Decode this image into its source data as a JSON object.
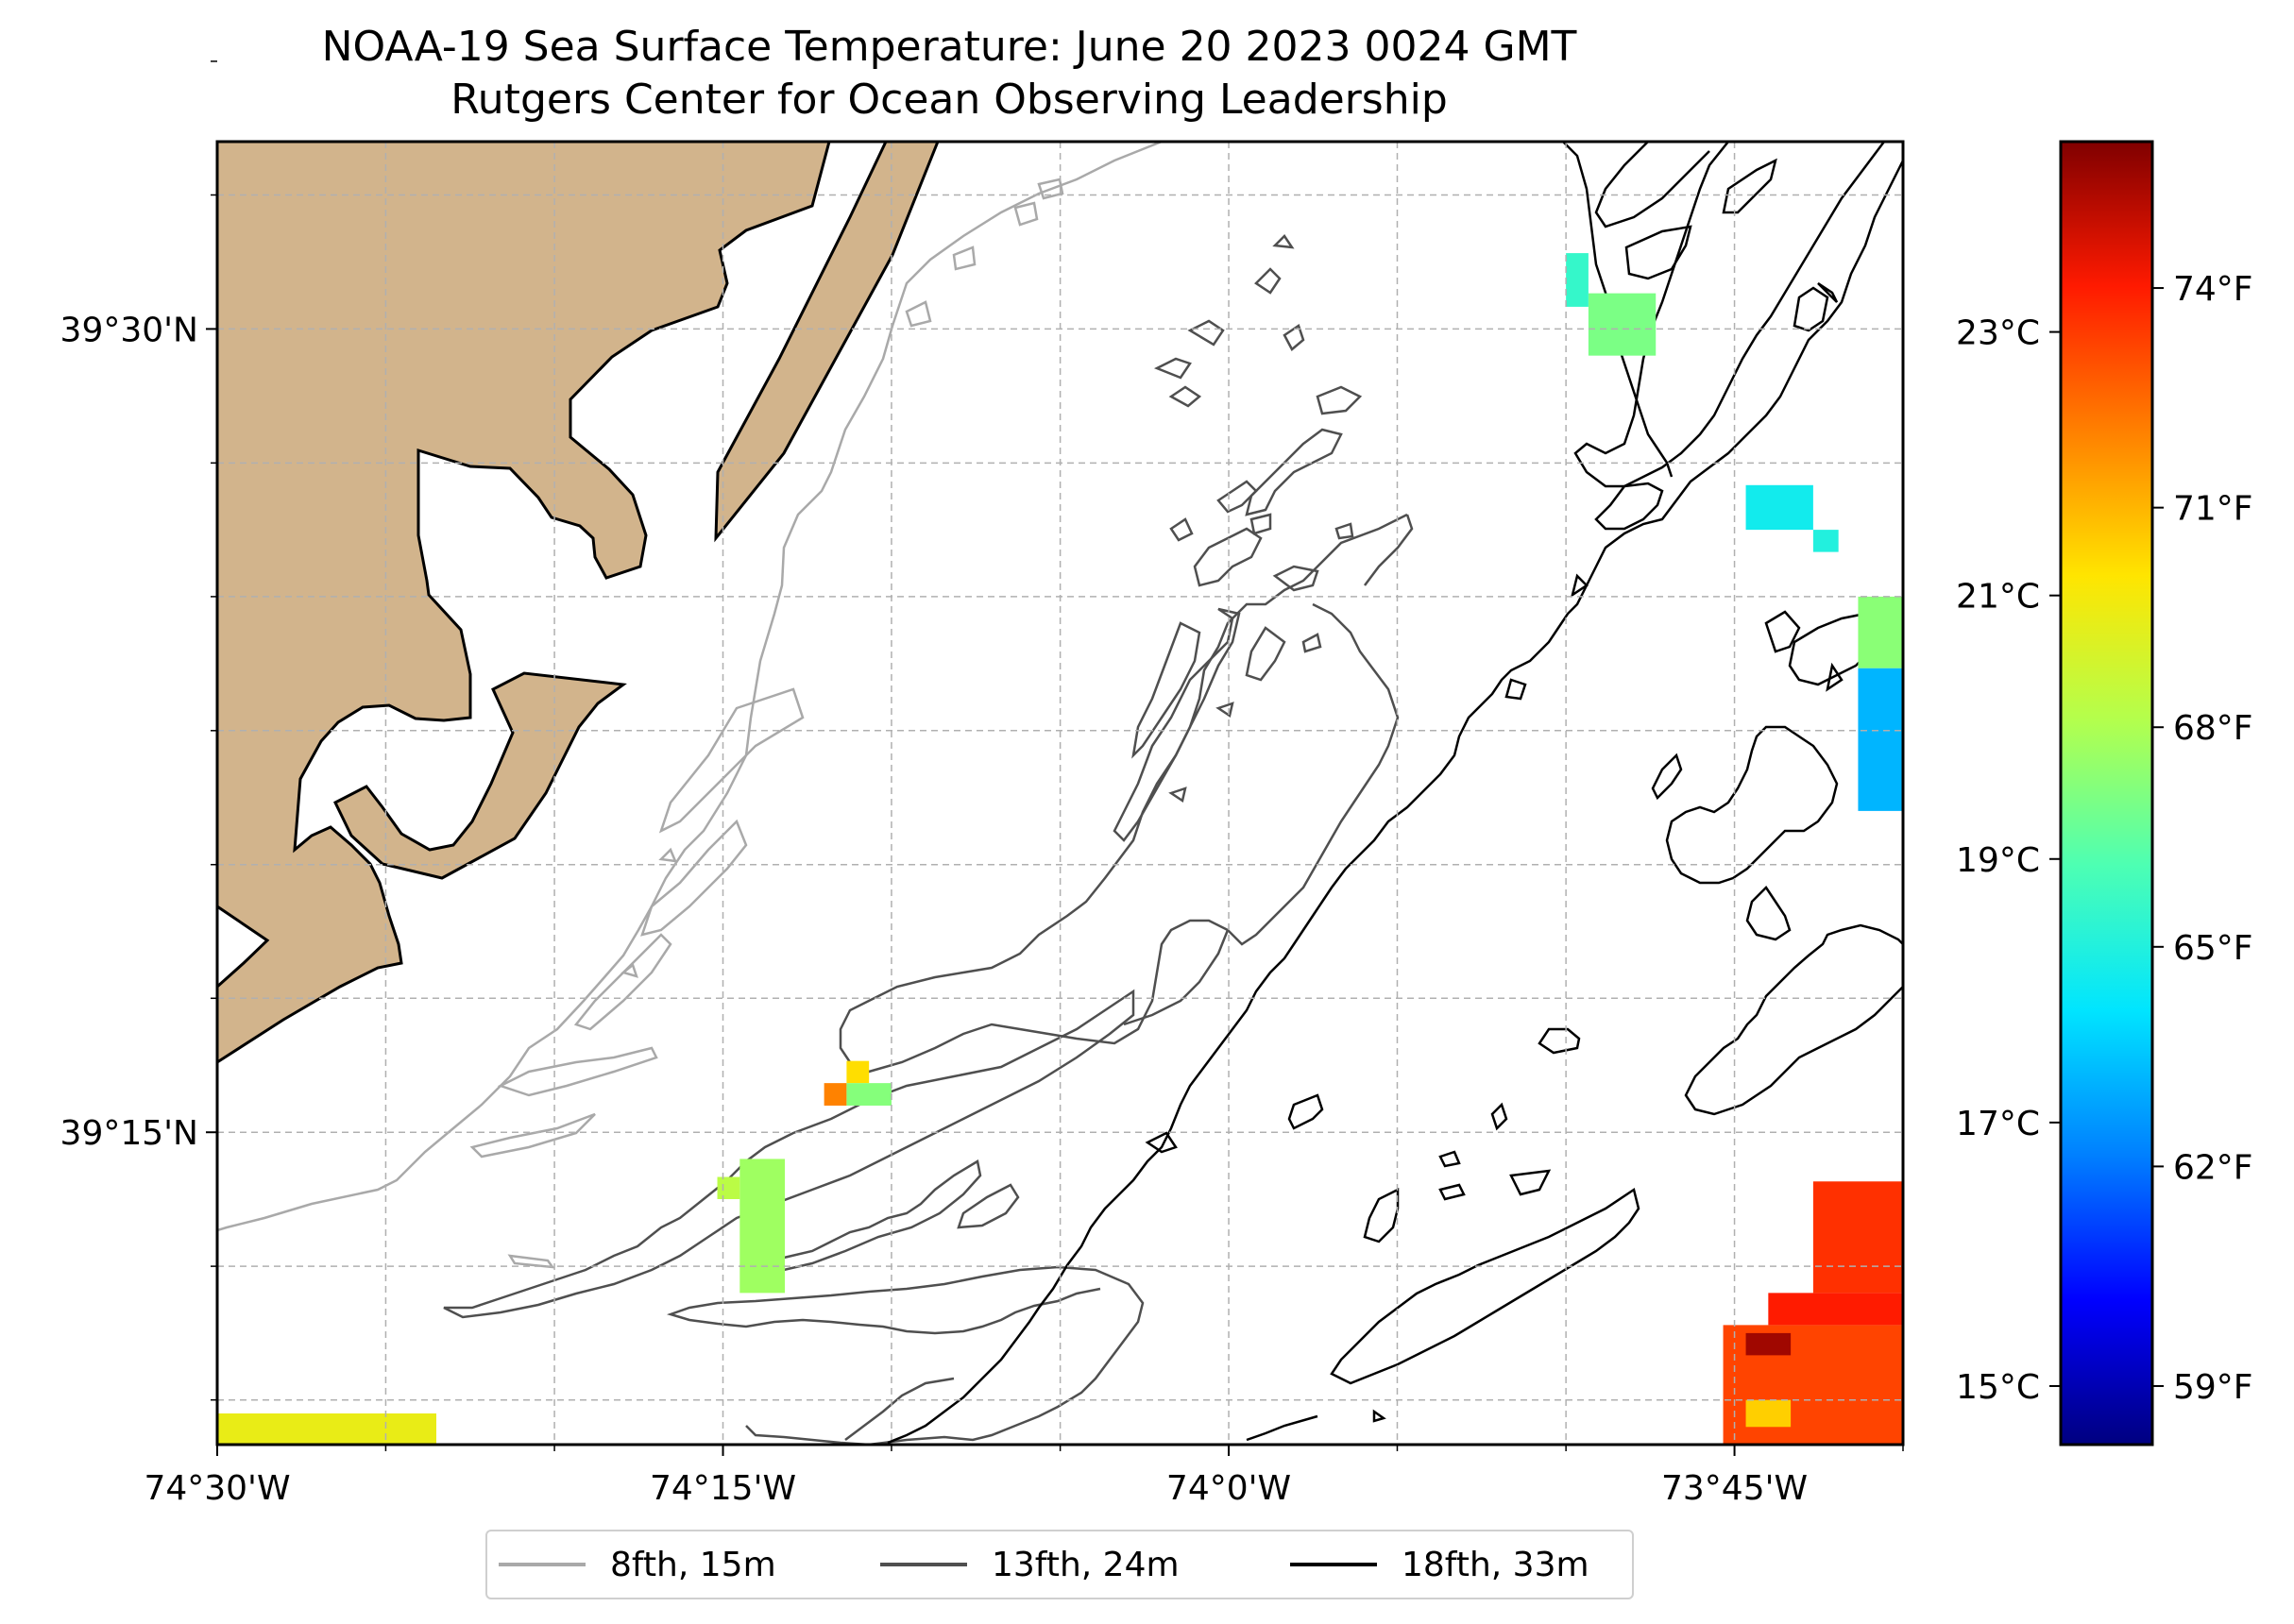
{
  "title": {
    "line1": "NOAA-19 Sea Surface Temperature: June 20 2023 0024 GMT",
    "line2": "Rutgers Center for Ocean Observing Leadership"
  },
  "map": {
    "extent": {
      "lon_min": -74.5,
      "lon_max": -73.6667,
      "lat_min": 39.1528,
      "lat_max": 39.5583
    },
    "colors": {
      "land": "#d2b48c",
      "ocean": "#ffffff",
      "coast": "#000000",
      "grid": "#b0b0b0",
      "contour_8": "#a9a9a9",
      "contour_13": "#4f4f4f",
      "contour_18": "#000000"
    },
    "x_ticks": [
      {
        "lon": -74.5,
        "label": "74°30'W"
      },
      {
        "lon": -74.25,
        "label": "74°15'W"
      },
      {
        "lon": -74.0,
        "label": "74°0'W"
      },
      {
        "lon": -73.75,
        "label": "73°45'W"
      }
    ],
    "x_minor_lons": [
      -74.4167,
      -74.3333,
      -74.1667,
      -74.0833,
      -73.9167,
      -73.8333,
      -73.6667
    ],
    "y_ticks": [
      {
        "lat": 39.5,
        "label": "39°30'N"
      },
      {
        "lat": 39.25,
        "label": "39°15'N"
      }
    ],
    "y_minor_lats": [
      39.5833,
      39.5417,
      39.4583,
      39.4167,
      39.375,
      39.3333,
      39.2917,
      39.2083,
      39.1667
    ]
  },
  "legend": {
    "items": [
      {
        "label": "8fth, 15m",
        "color": "#a9a9a9"
      },
      {
        "label": "13fth, 24m",
        "color": "#4f4f4f"
      },
      {
        "label": "18fth, 33m",
        "color": "#000000"
      }
    ]
  },
  "colorbar": {
    "vmin_f": 58.2,
    "vmax_f": 76.0,
    "stops": [
      "#000080",
      "#0000ff",
      "#0080ff",
      "#00e5ff",
      "#4dffb3",
      "#b3ff4d",
      "#ffe500",
      "#ff8000",
      "#ff1a00",
      "#800000"
    ],
    "celsius_ticks": [
      {
        "value_c": 23,
        "label": "23°C"
      },
      {
        "value_c": 21,
        "label": "21°C"
      },
      {
        "value_c": 19,
        "label": "19°C"
      },
      {
        "value_c": 17,
        "label": "17°C"
      },
      {
        "value_c": 15,
        "label": "15°C"
      }
    ],
    "fahrenheit_ticks": [
      {
        "value_f": 74,
        "label": "74°F"
      },
      {
        "value_f": 71,
        "label": "71°F"
      },
      {
        "value_f": 68,
        "label": "68°F"
      },
      {
        "value_f": 65,
        "label": "65°F"
      },
      {
        "value_f": 62,
        "label": "62°F"
      },
      {
        "value_f": 59,
        "label": "59°F"
      }
    ]
  },
  "sst_patches": [
    {
      "name": "sst-cell-southwest-strip",
      "lon": [
        -74.5,
        -74.3917
      ],
      "lat": [
        39.1528,
        39.1625
      ],
      "temp_f": 69.5
    },
    {
      "name": "sst-cell-west-cluster",
      "lon": [
        -74.2417,
        -74.2194
      ],
      "lat": [
        39.2,
        39.2417
      ],
      "temp_f": 67.7
    },
    {
      "name": "sst-cell-west-cluster-edge",
      "lon": [
        -74.2528,
        -74.2417
      ],
      "lat": [
        39.2292,
        39.2361
      ],
      "temp_f": 68.3
    },
    {
      "name": "sst-cell-mid-orange",
      "lon": [
        -74.2,
        -74.1889
      ],
      "lat": [
        39.2583,
        39.2653
      ],
      "temp_f": 72.0
    },
    {
      "name": "sst-cell-mid-yellow",
      "lon": [
        -74.1889,
        -74.1778
      ],
      "lat": [
        39.2653,
        39.2722
      ],
      "temp_f": 70.2
    },
    {
      "name": "sst-cell-mid-green",
      "lon": [
        -74.1889,
        -74.1667
      ],
      "lat": [
        39.2583,
        39.2653
      ],
      "temp_f": 67.2
    },
    {
      "name": "sst-cell-northeast-green",
      "lon": [
        -73.8222,
        -73.7889
      ],
      "lat": [
        39.4917,
        39.5111
      ],
      "temp_f": 67.0
    },
    {
      "name": "sst-cell-northeast-cyan",
      "lon": [
        -73.8333,
        -73.8222
      ],
      "lat": [
        39.5069,
        39.5236
      ],
      "temp_f": 65.5
    },
    {
      "name": "sst-cell-east-cyan",
      "lon": [
        -73.7444,
        -73.7111
      ],
      "lat": [
        39.4375,
        39.4514
      ],
      "temp_f": 64.6
    },
    {
      "name": "sst-cell-east-cyan-small",
      "lon": [
        -73.7111,
        -73.6986
      ],
      "lat": [
        39.4306,
        39.4375
      ],
      "temp_f": 65.0
    },
    {
      "name": "sst-cell-east-green",
      "lon": [
        -73.6889,
        -73.6667
      ],
      "lat": [
        39.3944,
        39.4167
      ],
      "temp_f": 67.3
    },
    {
      "name": "sst-cell-east-blue",
      "lon": [
        -73.6889,
        -73.6667
      ],
      "lat": [
        39.35,
        39.3944
      ],
      "temp_f": 63.2
    },
    {
      "name": "sst-cell-southeast-warm-a",
      "lon": [
        -73.7556,
        -73.6667
      ],
      "lat": [
        39.1528,
        39.19
      ],
      "temp_f": 73.2
    },
    {
      "name": "sst-cell-southeast-warm-b",
      "lon": [
        -73.7333,
        -73.6667
      ],
      "lat": [
        39.19,
        39.2
      ],
      "temp_f": 74.0
    },
    {
      "name": "sst-cell-southeast-warm-c",
      "lon": [
        -73.7111,
        -73.6667
      ],
      "lat": [
        39.2,
        39.2347
      ],
      "temp_f": 73.6
    },
    {
      "name": "sst-cell-southeast-hot",
      "lon": [
        -73.7444,
        -73.7222
      ],
      "lat": [
        39.1806,
        39.1875
      ],
      "temp_f": 75.5
    },
    {
      "name": "sst-cell-southeast-yellow",
      "lon": [
        -73.7444,
        -73.7222
      ],
      "lat": [
        39.1583,
        39.1667
      ],
      "temp_f": 70.5
    }
  ]
}
